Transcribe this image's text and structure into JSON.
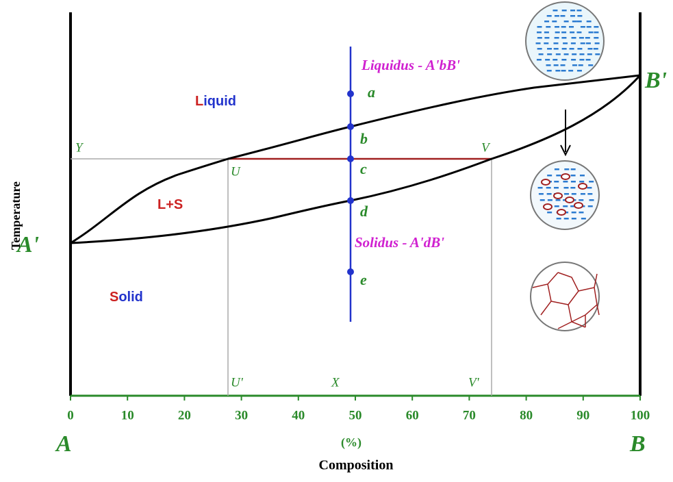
{
  "diagram": {
    "axis": {
      "ticks": [
        0,
        10,
        20,
        30,
        40,
        50,
        60,
        70,
        80,
        90,
        100
      ],
      "unit": "(%)",
      "title": "Composition",
      "y_title": "Temperature",
      "left_end": "A",
      "right_end": "B"
    },
    "curves": {
      "liquidus": "Liquidus - A'bB'",
      "solidus": "Solidus - A'dB'",
      "left_point": "A'",
      "right_point": "B'"
    },
    "regions": {
      "liquid": "Liquid",
      "mixed": "L+S",
      "solid": "Solid"
    },
    "points": [
      "a",
      "b",
      "c",
      "d",
      "e"
    ],
    "lever": {
      "y": "Y",
      "u": "U",
      "v": "V",
      "u_prime": "U'",
      "x": "X",
      "v_prime": "V'"
    }
  }
}
